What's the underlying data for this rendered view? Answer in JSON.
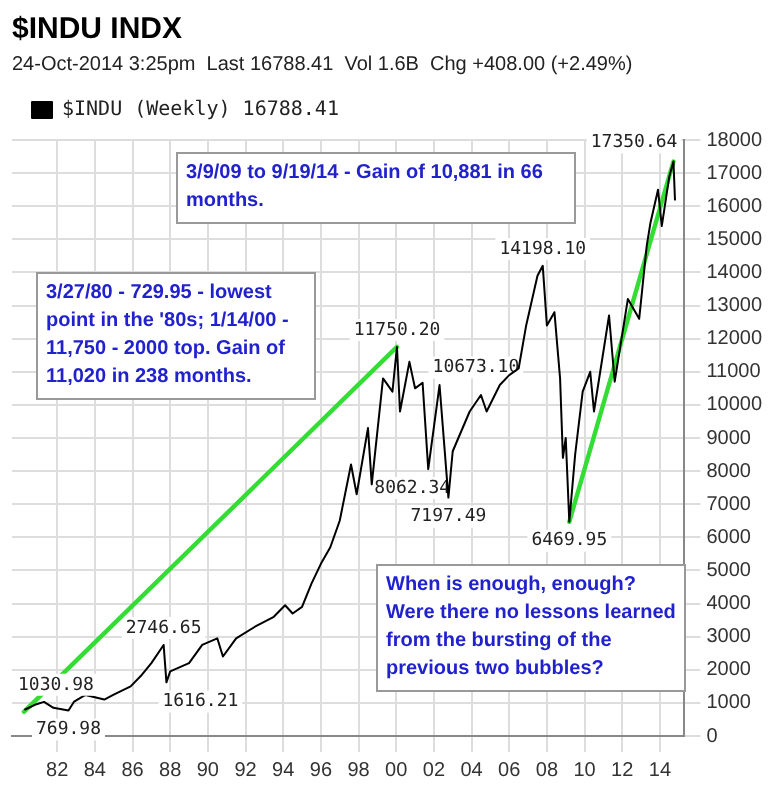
{
  "chart_data": {
    "type": "line",
    "title": "$INDU INDX",
    "subtitle": "24-Oct-2014 3:25pm  Last 16788.41  Vol 1.6B  Chg +408.00 (+2.49%)",
    "series": [
      {
        "name": "$INDU (Weekly) 16788.41",
        "color": "#000000",
        "x": [
          1980.3,
          1980.9,
          1981.3,
          1981.8,
          1982.6,
          1982.9,
          1983.5,
          1984.5,
          1985.0,
          1985.9,
          1986.5,
          1987.0,
          1987.65,
          1987.8,
          1988.0,
          1989.0,
          1989.7,
          1990.5,
          1990.8,
          1991.5,
          1992.5,
          1993.5,
          1994.1,
          1994.5,
          1995.0,
          1995.5,
          1996.0,
          1996.5,
          1997.0,
          1997.6,
          1997.9,
          1998.5,
          1998.7,
          1999.3,
          1999.8,
          2000.04,
          2000.2,
          2000.7,
          2001.0,
          2001.4,
          2001.7,
          2002.3,
          2002.77,
          2003.0,
          2003.9,
          2004.5,
          2004.8,
          2005.5,
          2006.0,
          2006.5,
          2006.9,
          2007.5,
          2007.78,
          2008.0,
          2008.4,
          2008.7,
          2008.85,
          2009.0,
          2009.19,
          2009.5,
          2009.9,
          2010.3,
          2010.5,
          2011.3,
          2011.6,
          2012.3,
          2012.9,
          2013.3,
          2013.5,
          2013.9,
          2014.1,
          2014.5,
          2014.72,
          2014.8
        ],
        "values": [
          800,
          960,
          1030,
          850,
          770,
          1040,
          1240,
          1100,
          1250,
          1500,
          1850,
          2200,
          2750,
          1620,
          1950,
          2200,
          2750,
          2950,
          2400,
          2950,
          3300,
          3600,
          3950,
          3700,
          3900,
          4600,
          5200,
          5700,
          6500,
          8200,
          7300,
          9300,
          7600,
          10800,
          10400,
          11750,
          9800,
          11300,
          10500,
          10670,
          8060,
          10600,
          7200,
          8600,
          9800,
          10300,
          9800,
          10600,
          10900,
          11100,
          12400,
          13900,
          14200,
          12400,
          12800,
          10800,
          8400,
          9000,
          6470,
          8500,
          10400,
          11000,
          9800,
          12700,
          10700,
          13200,
          12600,
          14800,
          15500,
          16500,
          15400,
          16900,
          17350,
          16200
        ]
      },
      {
        "color": "#33dd33",
        "x": [
          1980.23,
          2000.04
        ],
        "values": [
          730,
          11750
        ]
      },
      {
        "color": "#33dd33",
        "x": [
          2009.19,
          2014.72
        ],
        "values": [
          6470,
          17350
        ]
      }
    ],
    "xlim": [
      1979.6,
      2015.3
    ],
    "xticks": [
      {
        "value": 1982,
        "label": "82"
      },
      {
        "value": 1984,
        "label": "84"
      },
      {
        "value": 1986,
        "label": "86"
      },
      {
        "value": 1988,
        "label": "88"
      },
      {
        "value": 1990,
        "label": "90"
      },
      {
        "value": 1992,
        "label": "92"
      },
      {
        "value": 1994,
        "label": "94"
      },
      {
        "value": 1996,
        "label": "96"
      },
      {
        "value": 1998,
        "label": "98"
      },
      {
        "value": 2000,
        "label": "00"
      },
      {
        "value": 2002,
        "label": "02"
      },
      {
        "value": 2004,
        "label": "04"
      },
      {
        "value": 2006,
        "label": "06"
      },
      {
        "value": 2008,
        "label": "08"
      },
      {
        "value": 2010,
        "label": "10"
      },
      {
        "value": 2012,
        "label": "12"
      },
      {
        "value": 2014,
        "label": "14"
      }
    ],
    "ylim": [
      0,
      18000
    ],
    "yticks": [
      0,
      1000,
      2000,
      3000,
      4000,
      5000,
      6000,
      7000,
      8000,
      9000,
      10000,
      11000,
      12000,
      13000,
      14000,
      15000,
      16000,
      17000,
      18000
    ],
    "grid": true,
    "legend": "top left",
    "marker": "none",
    "line_style": "solid",
    "annotations": [
      {
        "text": "17350.64",
        "x": 2014.72,
        "y": 17350.64
      },
      {
        "text": "14198.10",
        "x": 2007.78,
        "y": 14198.1
      },
      {
        "text": "11750.20",
        "x": 2000.04,
        "y": 11750.2
      },
      {
        "text": "10673.10",
        "x": 2001.4,
        "y": 10673.1
      },
      {
        "text": "8062.34",
        "x": 2001.7,
        "y": 8062.34
      },
      {
        "text": "7197.49",
        "x": 2002.77,
        "y": 7197.49
      },
      {
        "text": "6469.95",
        "x": 2009.19,
        "y": 6469.95
      },
      {
        "text": "2746.65",
        "x": 1987.65,
        "y": 2746.65
      },
      {
        "text": "1616.21",
        "x": 1987.8,
        "y": 1616.21
      },
      {
        "text": "1030.98",
        "x": 1981.3,
        "y": 1030.98
      },
      {
        "text": "769.98",
        "x": 1982.6,
        "y": 769.98
      },
      "3/9/09 to 9/19/14 - Gain of 10,881 in 66 months.",
      "3/27/80 - 729.95 - lowest point in the '80s; 1/14/00 - 11,750 - 2000 top. Gain of 11,020 in 238 months.",
      "When is enough, enough? Were there no lessons learned from the bursting of the previous two bubbles?"
    ]
  }
}
